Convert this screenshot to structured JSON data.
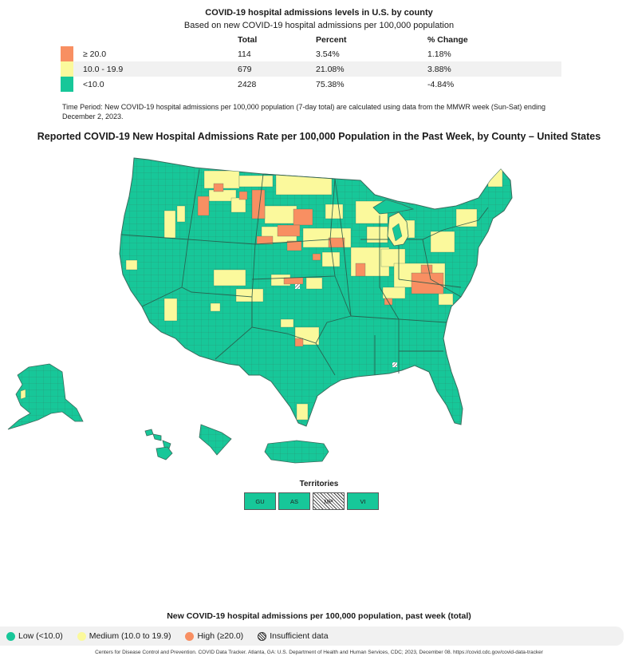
{
  "header": {
    "title": "COVID-19 hospital admissions levels in U.S. by county",
    "subtitle": "Based on new COVID-19 hospital admissions per 100,000 population"
  },
  "summary_table": {
    "columns": [
      "Total",
      "Percent",
      "% Change"
    ],
    "rows": [
      {
        "range": "≥ 20.0",
        "total": "114",
        "percent": "3.54%",
        "change": "1.18%",
        "color": "#f88f62"
      },
      {
        "range": "10.0 - 19.9",
        "total": "679",
        "percent": "21.08%",
        "change": "3.88%",
        "color": "#fbf99c"
      },
      {
        "range": "<10.0",
        "total": "2428",
        "percent": "75.38%",
        "change": "-4.84%",
        "color": "#17c799"
      }
    ]
  },
  "time_period": "Time Period: New COVID-19 hospital admissions per 100,000 population (7-day total) are calculated using data from the MMWR week (Sun-Sat) ending December 2, 2023.",
  "map": {
    "title": "Reported COVID-19 New Hospital Admissions Rate per 100,000 Population in the Past Week, by County – United States",
    "colors": {
      "low": "#17c799",
      "medium": "#fbf99c",
      "high": "#f88f62",
      "border": "#3a6b5c"
    }
  },
  "territories": {
    "title": "Territories",
    "items": [
      {
        "code": "GU",
        "status": "low"
      },
      {
        "code": "AS",
        "status": "low"
      },
      {
        "code": "MP",
        "status": "insufficient"
      },
      {
        "code": "VI",
        "status": "low"
      }
    ]
  },
  "legend": {
    "title": "New COVID-19 hospital admissions per 100,000 population, past week (total)",
    "items": [
      {
        "label": "Low (<10.0)",
        "color": "#17c799"
      },
      {
        "label": "Medium (10.0 to 19.9)",
        "color": "#fbf99c"
      },
      {
        "label": "High (≥20.0)",
        "color": "#f88f62"
      },
      {
        "label": "Insufficient data",
        "color": "hatch"
      }
    ]
  },
  "footer": "Centers for Disease Control and Prevention. COVID Data Tracker. Atlanta, GA: U.S. Department of Health and Human Services, CDC; 2023, December 08. https://covid.cdc.gov/covid-data-tracker"
}
